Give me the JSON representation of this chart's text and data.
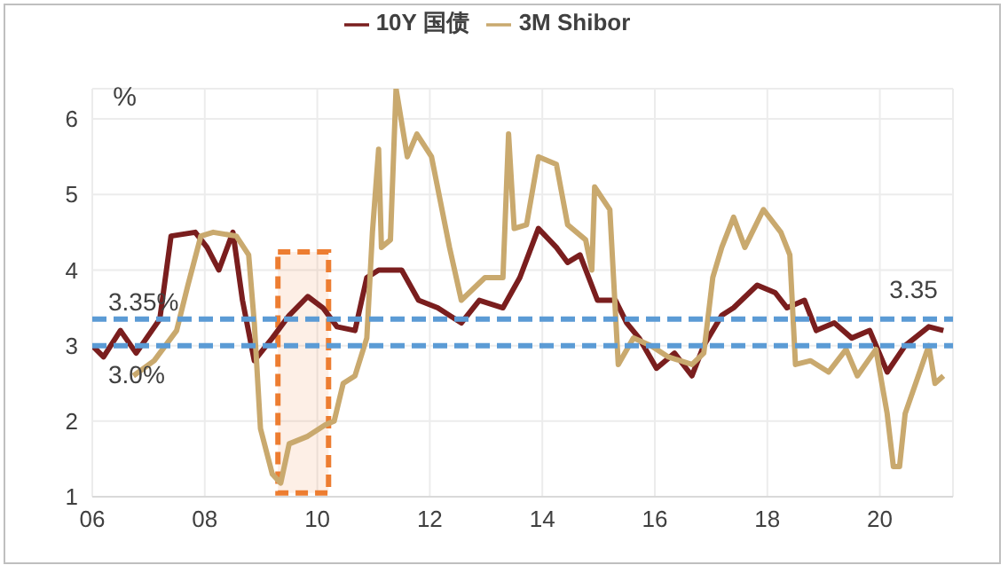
{
  "chart_data": {
    "type": "line",
    "ylabel": "%",
    "xlim": [
      2006,
      2021.3
    ],
    "xticks": [
      {
        "value": 2006,
        "label": "06"
      },
      {
        "value": 2008,
        "label": "08"
      },
      {
        "value": 2010,
        "label": "10"
      },
      {
        "value": 2012,
        "label": "12"
      },
      {
        "value": 2014,
        "label": "14"
      },
      {
        "value": 2016,
        "label": "16"
      },
      {
        "value": 2018,
        "label": "18"
      },
      {
        "value": 2020,
        "label": "20"
      }
    ],
    "ylim": [
      1,
      6.4
    ],
    "yticks": [
      1,
      2,
      3,
      4,
      5,
      6
    ],
    "grid": true,
    "legend": "top",
    "marker": "none",
    "line_style": "solid",
    "series": [
      {
        "name": "10Y 国债",
        "color": "#7a1e1e",
        "x": [
          2006,
          2006.2,
          2006.5,
          2006.78,
          2007.2,
          2007.4,
          2007.83,
          2008.04,
          2008.25,
          2008.5,
          2008.67,
          2008.88,
          2009.2,
          2009.5,
          2009.83,
          2010.1,
          2010.35,
          2010.67,
          2010.88,
          2011.09,
          2011.5,
          2011.8,
          2012.14,
          2012.56,
          2012.88,
          2013.3,
          2013.6,
          2013.93,
          2014.25,
          2014.45,
          2014.67,
          2014.98,
          2015.3,
          2015.5,
          2015.72,
          2016.03,
          2016.35,
          2016.66,
          2016.87,
          2017.19,
          2017.4,
          2017.82,
          2018.14,
          2018.35,
          2018.66,
          2018.87,
          2019.19,
          2019.5,
          2019.82,
          2020.13,
          2020.45,
          2020.87,
          2021.13
        ],
        "values": [
          3.0,
          2.85,
          3.2,
          2.9,
          3.35,
          4.45,
          4.5,
          4.3,
          4.0,
          4.5,
          3.6,
          2.8,
          3.1,
          3.4,
          3.65,
          3.5,
          3.25,
          3.2,
          3.9,
          4.0,
          4.0,
          3.6,
          3.5,
          3.3,
          3.6,
          3.5,
          3.9,
          4.55,
          4.3,
          4.1,
          4.2,
          3.6,
          3.6,
          3.3,
          3.1,
          2.7,
          2.9,
          2.6,
          3.0,
          3.4,
          3.5,
          3.8,
          3.7,
          3.5,
          3.6,
          3.2,
          3.3,
          3.1,
          3.2,
          2.65,
          3.0,
          3.25,
          3.2
        ]
      },
      {
        "name": "3M Shibor",
        "color": "#c9a96e",
        "x": [
          2006.73,
          2007.1,
          2007.5,
          2007.7,
          2007.93,
          2008.15,
          2008.56,
          2008.78,
          2008.88,
          2008.99,
          2009.2,
          2009.35,
          2009.5,
          2009.83,
          2010.14,
          2010.3,
          2010.46,
          2010.67,
          2010.88,
          2010.98,
          2011.09,
          2011.14,
          2011.3,
          2011.4,
          2011.6,
          2011.77,
          2012.03,
          2012.35,
          2012.56,
          2012.98,
          2013.3,
          2013.4,
          2013.5,
          2013.72,
          2013.93,
          2014.25,
          2014.45,
          2014.77,
          2014.88,
          2014.93,
          2015.2,
          2015.35,
          2015.62,
          2015.93,
          2016.24,
          2016.66,
          2016.87,
          2017.03,
          2017.19,
          2017.4,
          2017.6,
          2017.93,
          2018.24,
          2018.4,
          2018.5,
          2018.77,
          2019.09,
          2019.4,
          2019.6,
          2019.93,
          2020.13,
          2020.24,
          2020.35,
          2020.45,
          2020.66,
          2020.87,
          2020.98,
          2021.13
        ],
        "values": [
          2.6,
          2.8,
          3.2,
          3.8,
          4.45,
          4.5,
          4.45,
          4.2,
          3.3,
          1.9,
          1.3,
          1.18,
          1.7,
          1.8,
          1.95,
          2.0,
          2.5,
          2.6,
          3.1,
          4.5,
          5.6,
          4.3,
          4.4,
          6.4,
          5.5,
          5.8,
          5.5,
          4.3,
          3.6,
          3.9,
          3.9,
          5.8,
          4.55,
          4.6,
          5.5,
          5.4,
          4.6,
          4.4,
          4.0,
          5.1,
          4.8,
          2.75,
          3.1,
          3.0,
          2.85,
          2.75,
          2.9,
          3.9,
          4.3,
          4.7,
          4.3,
          4.8,
          4.5,
          4.2,
          2.75,
          2.8,
          2.65,
          2.95,
          2.6,
          2.95,
          2.1,
          1.4,
          1.4,
          2.1,
          2.55,
          3.0,
          2.5,
          2.6
        ]
      }
    ],
    "ref_lines": [
      {
        "axis": "y",
        "value": 3.35,
        "label": "3.35%",
        "color": "#5b9bd5",
        "line_style": "dashed"
      },
      {
        "axis": "y",
        "value": 3.0,
        "label": "3.0%",
        "color": "#5b9bd5",
        "line_style": "dashed"
      }
    ],
    "bands": [
      {
        "axis": "x",
        "from": 2009.3,
        "to": 2010.2,
        "color": "#ed7d31"
      }
    ],
    "annotations": [
      {
        "text": "3.35",
        "x": 2020.6,
        "y": 3.35
      }
    ]
  }
}
